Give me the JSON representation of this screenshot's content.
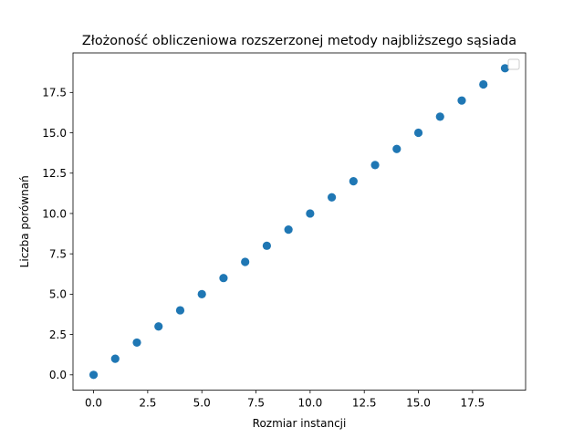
{
  "chart_data": {
    "type": "scatter",
    "title": "Złożoność obliczeniowa rozszerzonej metody najbliższego sąsiada",
    "xlabel": "Rozmiar instancji",
    "ylabel": "Liczba porównań",
    "x": [
      0,
      1,
      2,
      3,
      4,
      5,
      6,
      7,
      8,
      9,
      10,
      11,
      12,
      13,
      14,
      15,
      16,
      17,
      18,
      19
    ],
    "series": [
      {
        "values": [
          0,
          1,
          2,
          3,
          4,
          5,
          6,
          7,
          8,
          9,
          10,
          11,
          12,
          13,
          14,
          15,
          16,
          17,
          18,
          19
        ],
        "color": "#1f77b4"
      }
    ],
    "xlim": [
      -0.95,
      19.95
    ],
    "ylim": [
      -0.95,
      19.95
    ],
    "xticks": [
      "0.0",
      "2.5",
      "5.0",
      "7.5",
      "10.0",
      "12.5",
      "15.0",
      "17.5"
    ],
    "yticks": [
      "0.0",
      "2.5",
      "5.0",
      "7.5",
      "10.0",
      "12.5",
      "15.0",
      "17.5"
    ],
    "grid": false,
    "legend": "top-right"
  }
}
